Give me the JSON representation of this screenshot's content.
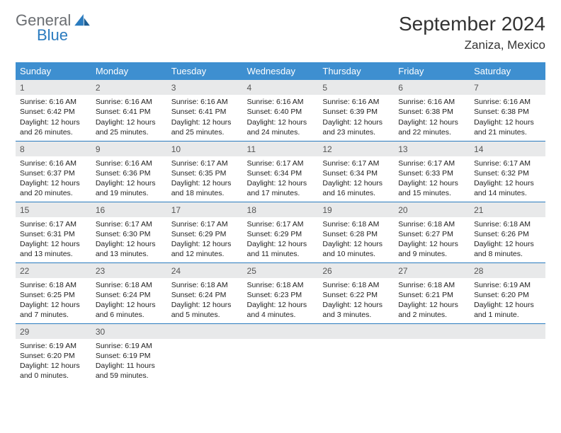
{
  "brand": {
    "general": "General",
    "blue": "Blue"
  },
  "title": "September 2024",
  "location": "Zaniza, Mexico",
  "colors": {
    "header_bg": "#3e8fd0",
    "header_text": "#ffffff",
    "daynum_bg": "#e8e9ea",
    "rule": "#2a7bbf",
    "logo_gray": "#6b6e72",
    "logo_blue": "#2a7bbf"
  },
  "week_headers": [
    "Sunday",
    "Monday",
    "Tuesday",
    "Wednesday",
    "Thursday",
    "Friday",
    "Saturday"
  ],
  "weeks": [
    [
      {
        "day": "1",
        "sunrise": "Sunrise: 6:16 AM",
        "sunset": "Sunset: 6:42 PM",
        "daylight": "Daylight: 12 hours and 26 minutes."
      },
      {
        "day": "2",
        "sunrise": "Sunrise: 6:16 AM",
        "sunset": "Sunset: 6:41 PM",
        "daylight": "Daylight: 12 hours and 25 minutes."
      },
      {
        "day": "3",
        "sunrise": "Sunrise: 6:16 AM",
        "sunset": "Sunset: 6:41 PM",
        "daylight": "Daylight: 12 hours and 25 minutes."
      },
      {
        "day": "4",
        "sunrise": "Sunrise: 6:16 AM",
        "sunset": "Sunset: 6:40 PM",
        "daylight": "Daylight: 12 hours and 24 minutes."
      },
      {
        "day": "5",
        "sunrise": "Sunrise: 6:16 AM",
        "sunset": "Sunset: 6:39 PM",
        "daylight": "Daylight: 12 hours and 23 minutes."
      },
      {
        "day": "6",
        "sunrise": "Sunrise: 6:16 AM",
        "sunset": "Sunset: 6:38 PM",
        "daylight": "Daylight: 12 hours and 22 minutes."
      },
      {
        "day": "7",
        "sunrise": "Sunrise: 6:16 AM",
        "sunset": "Sunset: 6:38 PM",
        "daylight": "Daylight: 12 hours and 21 minutes."
      }
    ],
    [
      {
        "day": "8",
        "sunrise": "Sunrise: 6:16 AM",
        "sunset": "Sunset: 6:37 PM",
        "daylight": "Daylight: 12 hours and 20 minutes."
      },
      {
        "day": "9",
        "sunrise": "Sunrise: 6:16 AM",
        "sunset": "Sunset: 6:36 PM",
        "daylight": "Daylight: 12 hours and 19 minutes."
      },
      {
        "day": "10",
        "sunrise": "Sunrise: 6:17 AM",
        "sunset": "Sunset: 6:35 PM",
        "daylight": "Daylight: 12 hours and 18 minutes."
      },
      {
        "day": "11",
        "sunrise": "Sunrise: 6:17 AM",
        "sunset": "Sunset: 6:34 PM",
        "daylight": "Daylight: 12 hours and 17 minutes."
      },
      {
        "day": "12",
        "sunrise": "Sunrise: 6:17 AM",
        "sunset": "Sunset: 6:34 PM",
        "daylight": "Daylight: 12 hours and 16 minutes."
      },
      {
        "day": "13",
        "sunrise": "Sunrise: 6:17 AM",
        "sunset": "Sunset: 6:33 PM",
        "daylight": "Daylight: 12 hours and 15 minutes."
      },
      {
        "day": "14",
        "sunrise": "Sunrise: 6:17 AM",
        "sunset": "Sunset: 6:32 PM",
        "daylight": "Daylight: 12 hours and 14 minutes."
      }
    ],
    [
      {
        "day": "15",
        "sunrise": "Sunrise: 6:17 AM",
        "sunset": "Sunset: 6:31 PM",
        "daylight": "Daylight: 12 hours and 13 minutes."
      },
      {
        "day": "16",
        "sunrise": "Sunrise: 6:17 AM",
        "sunset": "Sunset: 6:30 PM",
        "daylight": "Daylight: 12 hours and 13 minutes."
      },
      {
        "day": "17",
        "sunrise": "Sunrise: 6:17 AM",
        "sunset": "Sunset: 6:29 PM",
        "daylight": "Daylight: 12 hours and 12 minutes."
      },
      {
        "day": "18",
        "sunrise": "Sunrise: 6:17 AM",
        "sunset": "Sunset: 6:29 PM",
        "daylight": "Daylight: 12 hours and 11 minutes."
      },
      {
        "day": "19",
        "sunrise": "Sunrise: 6:18 AM",
        "sunset": "Sunset: 6:28 PM",
        "daylight": "Daylight: 12 hours and 10 minutes."
      },
      {
        "day": "20",
        "sunrise": "Sunrise: 6:18 AM",
        "sunset": "Sunset: 6:27 PM",
        "daylight": "Daylight: 12 hours and 9 minutes."
      },
      {
        "day": "21",
        "sunrise": "Sunrise: 6:18 AM",
        "sunset": "Sunset: 6:26 PM",
        "daylight": "Daylight: 12 hours and 8 minutes."
      }
    ],
    [
      {
        "day": "22",
        "sunrise": "Sunrise: 6:18 AM",
        "sunset": "Sunset: 6:25 PM",
        "daylight": "Daylight: 12 hours and 7 minutes."
      },
      {
        "day": "23",
        "sunrise": "Sunrise: 6:18 AM",
        "sunset": "Sunset: 6:24 PM",
        "daylight": "Daylight: 12 hours and 6 minutes."
      },
      {
        "day": "24",
        "sunrise": "Sunrise: 6:18 AM",
        "sunset": "Sunset: 6:24 PM",
        "daylight": "Daylight: 12 hours and 5 minutes."
      },
      {
        "day": "25",
        "sunrise": "Sunrise: 6:18 AM",
        "sunset": "Sunset: 6:23 PM",
        "daylight": "Daylight: 12 hours and 4 minutes."
      },
      {
        "day": "26",
        "sunrise": "Sunrise: 6:18 AM",
        "sunset": "Sunset: 6:22 PM",
        "daylight": "Daylight: 12 hours and 3 minutes."
      },
      {
        "day": "27",
        "sunrise": "Sunrise: 6:18 AM",
        "sunset": "Sunset: 6:21 PM",
        "daylight": "Daylight: 12 hours and 2 minutes."
      },
      {
        "day": "28",
        "sunrise": "Sunrise: 6:19 AM",
        "sunset": "Sunset: 6:20 PM",
        "daylight": "Daylight: 12 hours and 1 minute."
      }
    ],
    [
      {
        "day": "29",
        "sunrise": "Sunrise: 6:19 AM",
        "sunset": "Sunset: 6:20 PM",
        "daylight": "Daylight: 12 hours and 0 minutes."
      },
      {
        "day": "30",
        "sunrise": "Sunrise: 6:19 AM",
        "sunset": "Sunset: 6:19 PM",
        "daylight": "Daylight: 11 hours and 59 minutes."
      },
      {
        "day": "",
        "empty": true
      },
      {
        "day": "",
        "empty": true
      },
      {
        "day": "",
        "empty": true
      },
      {
        "day": "",
        "empty": true
      },
      {
        "day": "",
        "empty": true
      }
    ]
  ]
}
